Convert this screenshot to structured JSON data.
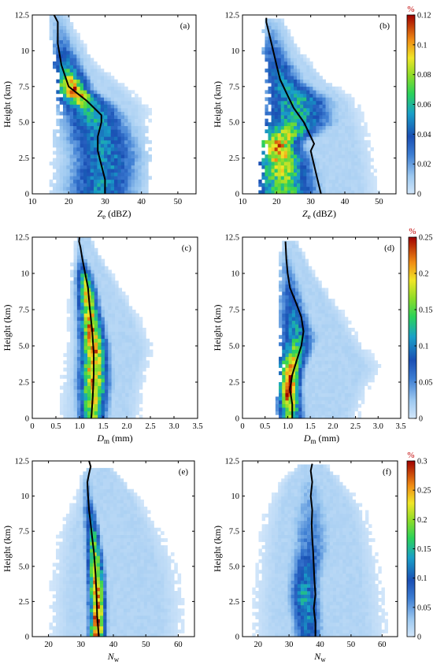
{
  "chart_data": [
    {
      "id": "a",
      "type": "heatmap",
      "panel_label": "(a)",
      "xlabel_main": "Z",
      "xlabel_sub": "e",
      "xlabel_unit": " (dBZ)",
      "ylabel": "Height (km)",
      "xlim": [
        10,
        55
      ],
      "ylim": [
        0,
        12.5
      ],
      "xticks": [
        "10",
        "20",
        "30",
        "40",
        "50"
      ],
      "xtick_values": [
        10,
        20,
        30,
        40,
        50
      ],
      "yticks": [
        "0",
        "2.5",
        "5.0",
        "7.5",
        "10",
        "12.5"
      ],
      "ytick_values": [
        0,
        2.5,
        5,
        7.5,
        10,
        12.5
      ],
      "density_profile": [
        {
          "h": 0.5,
          "left": 15,
          "right": 43,
          "peak": 29,
          "width": 6,
          "max": 0.05
        },
        {
          "h": 2.5,
          "left": 15,
          "right": 43,
          "peak": 30,
          "width": 6,
          "max": 0.05
        },
        {
          "h": 4.5,
          "left": 16,
          "right": 42,
          "peak": 28,
          "width": 6,
          "max": 0.05
        },
        {
          "h": 5.8,
          "left": 17,
          "right": 43,
          "peak": 26,
          "width": 5,
          "max": 0.06
        },
        {
          "h": 7.3,
          "left": 17,
          "right": 37,
          "peak": 21,
          "width": 3,
          "max": 0.11
        },
        {
          "h": 9.0,
          "left": 16,
          "right": 28,
          "peak": 19,
          "width": 3,
          "max": 0.05
        },
        {
          "h": 11.0,
          "left": 15,
          "right": 23,
          "peak": 18,
          "width": 2,
          "max": 0.02
        },
        {
          "h": 12.5,
          "left": 15,
          "right": 20,
          "peak": 17,
          "width": 2,
          "max": 0.01
        }
      ],
      "mean_profile": {
        "x": [
          30,
          30,
          29,
          28,
          28,
          29,
          29,
          25,
          20,
          18,
          17,
          17,
          16
        ],
        "h": [
          0,
          1,
          2,
          3,
          4,
          5,
          5.5,
          6.5,
          7.5,
          9,
          10.5,
          12,
          12.5
        ]
      }
    },
    {
      "id": "b",
      "type": "heatmap",
      "panel_label": "(b)",
      "xlabel_main": "Z",
      "xlabel_sub": "e",
      "xlabel_unit": " (dBZ)",
      "ylabel": "Height (km)",
      "xlim": [
        10,
        55
      ],
      "ylim": [
        0,
        12.5
      ],
      "xticks": [
        "10",
        "20",
        "30",
        "40",
        "50"
      ],
      "xtick_values": [
        10,
        20,
        30,
        40,
        50
      ],
      "yticks": [
        "0",
        "2.5",
        "5.0",
        "7.5",
        "10",
        "12.5"
      ],
      "ytick_values": [
        0,
        2.5,
        5,
        7.5,
        10,
        12.5
      ],
      "colorbar": {
        "unit": "%",
        "ticks": [
          "0",
          "0.02",
          "0.04",
          "0.06",
          "0.08",
          "0.1",
          "0.12"
        ],
        "tick_values": [
          0,
          0.02,
          0.04,
          0.06,
          0.08,
          0.1,
          0.12
        ],
        "max": 0.12
      },
      "density_profile": [
        {
          "h": 0.5,
          "left": 15,
          "right": 50,
          "peak": 22,
          "width": 6,
          "max": 0.07
        },
        {
          "h": 2.5,
          "left": 15,
          "right": 49,
          "peak": 21,
          "width": 5,
          "max": 0.09
        },
        {
          "h": 3.5,
          "left": 16,
          "right": 48,
          "peak": 20,
          "width": 4,
          "max": 0.1
        },
        {
          "h": 5.0,
          "left": 17,
          "right": 46,
          "peak": 25,
          "width": 7,
          "max": 0.06
        },
        {
          "h": 6.5,
          "left": 17,
          "right": 44,
          "peak": 26,
          "width": 6,
          "max": 0.06
        },
        {
          "h": 8.0,
          "left": 17,
          "right": 35,
          "peak": 21,
          "width": 4,
          "max": 0.05
        },
        {
          "h": 10.0,
          "left": 16,
          "right": 27,
          "peak": 19,
          "width": 3,
          "max": 0.03
        },
        {
          "h": 12.2,
          "left": 16,
          "right": 22,
          "peak": 18,
          "width": 2,
          "max": 0.01
        }
      ],
      "mean_profile": {
        "x": [
          33,
          32,
          31,
          30,
          31,
          30,
          28,
          25,
          23,
          21,
          20,
          19,
          18,
          17,
          17
        ],
        "h": [
          0,
          1,
          2,
          3,
          3.5,
          4,
          5,
          6,
          7,
          8,
          9,
          10,
          11,
          12,
          12.3
        ]
      }
    },
    {
      "id": "c",
      "type": "heatmap",
      "panel_label": "(c)",
      "xlabel_main": "D",
      "xlabel_sub": "m",
      "xlabel_unit": " (mm)",
      "ylabel": "Height (km)",
      "xlim": [
        0,
        3.5
      ],
      "ylim": [
        0,
        12.5
      ],
      "xticks": [
        "0",
        "0.5",
        "1.0",
        "1.5",
        "2.0",
        "2.5",
        "3.0",
        "3.5"
      ],
      "xtick_values": [
        0,
        0.5,
        1,
        1.5,
        2,
        2.5,
        3,
        3.5
      ],
      "yticks": [
        "0",
        "2.5",
        "5.0",
        "7.5",
        "10",
        "12.5"
      ],
      "ytick_values": [
        0,
        2.5,
        5,
        7.5,
        10,
        12.5
      ],
      "density_profile": [
        {
          "h": 0.5,
          "left": 0.55,
          "right": 2.3,
          "peak": 1.28,
          "width": 0.18,
          "max": 0.17
        },
        {
          "h": 2.5,
          "left": 0.6,
          "right": 2.4,
          "peak": 1.3,
          "width": 0.2,
          "max": 0.2
        },
        {
          "h": 5.0,
          "left": 0.7,
          "right": 2.6,
          "peak": 1.3,
          "width": 0.18,
          "max": 0.21
        },
        {
          "h": 7.5,
          "left": 0.75,
          "right": 2.2,
          "peak": 1.2,
          "width": 0.14,
          "max": 0.2
        },
        {
          "h": 9.5,
          "left": 0.8,
          "right": 1.8,
          "peak": 1.12,
          "width": 0.12,
          "max": 0.16
        },
        {
          "h": 11.0,
          "left": 0.85,
          "right": 1.5,
          "peak": 1.05,
          "width": 0.08,
          "max": 0.04
        },
        {
          "h": 12.5,
          "left": 0.9,
          "right": 1.25,
          "peak": 1.0,
          "width": 0.06,
          "max": 0.01
        }
      ],
      "mean_profile": {
        "x": [
          1.25,
          1.28,
          1.3,
          1.3,
          1.27,
          1.22,
          1.18,
          1.12,
          1.06,
          1.02,
          0.99,
          1.0
        ],
        "h": [
          0,
          1.5,
          3,
          4.5,
          6,
          7.5,
          9,
          10,
          11,
          11.8,
          12.2,
          12.5
        ]
      }
    },
    {
      "id": "d",
      "type": "heatmap",
      "panel_label": "(d)",
      "xlabel_main": "D",
      "xlabel_sub": "m",
      "xlabel_unit": " (mm)",
      "ylabel": "Height (km)",
      "xlim": [
        0,
        3.5
      ],
      "ylim": [
        0,
        12.5
      ],
      "xticks": [
        "0",
        "0.5",
        "1.0",
        "1.5",
        "2.0",
        "2.5",
        "3.0",
        "3.5"
      ],
      "xtick_values": [
        0,
        0.5,
        1,
        1.5,
        2,
        2.5,
        3,
        3.5
      ],
      "yticks": [
        "0",
        "2.5",
        "5.0",
        "7.5",
        "10",
        "12.5"
      ],
      "ytick_values": [
        0,
        2.5,
        5,
        7.5,
        10,
        12.5
      ],
      "colorbar": {
        "unit": "%",
        "ticks": [
          "0",
          "0.05",
          "0.1",
          "0.15",
          "0.2",
          "0.25"
        ],
        "tick_values": [
          0,
          0.05,
          0.1,
          0.15,
          0.2,
          0.25
        ],
        "max": 0.25
      },
      "density_profile": [
        {
          "h": 0.5,
          "left": 0.7,
          "right": 2.6,
          "peak": 1.05,
          "width": 0.18,
          "max": 0.16
        },
        {
          "h": 2.0,
          "left": 0.75,
          "right": 2.8,
          "peak": 1.02,
          "width": 0.15,
          "max": 0.24
        },
        {
          "h": 3.5,
          "left": 0.8,
          "right": 3.1,
          "peak": 1.05,
          "width": 0.18,
          "max": 0.2
        },
        {
          "h": 5.5,
          "left": 0.8,
          "right": 2.6,
          "peak": 1.2,
          "width": 0.25,
          "max": 0.12
        },
        {
          "h": 7.5,
          "left": 0.8,
          "right": 2.2,
          "peak": 1.1,
          "width": 0.2,
          "max": 0.09
        },
        {
          "h": 10.0,
          "left": 0.8,
          "right": 1.6,
          "peak": 1.0,
          "width": 0.14,
          "max": 0.05
        },
        {
          "h": 12.3,
          "left": 0.85,
          "right": 1.2,
          "peak": 0.95,
          "width": 0.07,
          "max": 0.01
        }
      ],
      "mean_profile": {
        "x": [
          1.1,
          1.1,
          1.05,
          1.1,
          1.2,
          1.3,
          1.35,
          1.3,
          1.18,
          1.05,
          1.0,
          0.97,
          0.95
        ],
        "h": [
          0,
          1,
          2,
          3,
          4,
          5,
          6,
          7,
          8,
          9,
          10,
          11,
          12.2
        ]
      }
    },
    {
      "id": "e",
      "type": "heatmap",
      "panel_label": "(e)",
      "xlabel_main": "N",
      "xlabel_sub": "w",
      "xlabel_unit": "",
      "ylabel": "Height (km)",
      "xlim": [
        15,
        65
      ],
      "ylim": [
        0,
        12.5
      ],
      "xticks": [
        "20",
        "30",
        "40",
        "50",
        "60"
      ],
      "xtick_values": [
        20,
        30,
        40,
        50,
        60
      ],
      "yticks": [
        "0",
        "2.5",
        "5.0",
        "7.5",
        "10",
        "12.5"
      ],
      "ytick_values": [
        0,
        2.5,
        5,
        7.5,
        10,
        12.5
      ],
      "density_profile": [
        {
          "h": 0.5,
          "left": 20,
          "right": 62,
          "peak": 35,
          "width": 1.6,
          "max": 0.27
        },
        {
          "h": 2.5,
          "left": 20,
          "right": 62,
          "peak": 35,
          "width": 1.6,
          "max": 0.27
        },
        {
          "h": 5.0,
          "left": 21,
          "right": 60,
          "peak": 34.5,
          "width": 1.6,
          "max": 0.22
        },
        {
          "h": 7.5,
          "left": 23,
          "right": 55,
          "peak": 33.5,
          "width": 1.4,
          "max": 0.15
        },
        {
          "h": 10.0,
          "left": 28,
          "right": 48,
          "peak": 32,
          "width": 1.2,
          "max": 0.06
        },
        {
          "h": 12.0,
          "left": 31,
          "right": 40,
          "peak": 32,
          "width": 0.8,
          "max": 0.02
        }
      ],
      "mean_profile": {
        "x": [
          35.5,
          35,
          34.8,
          34.5,
          34,
          33.5,
          33,
          32.5,
          32.2,
          32,
          32.5,
          33,
          32.5
        ],
        "h": [
          0,
          1.5,
          3,
          4.5,
          6,
          7,
          8,
          9,
          10,
          11,
          11.6,
          12.1,
          12.5
        ]
      }
    },
    {
      "id": "f",
      "type": "heatmap",
      "panel_label": "(f)",
      "xlabel_main": "N",
      "xlabel_sub": "w",
      "xlabel_unit": "",
      "ylabel": "Height (km)",
      "xlim": [
        15,
        65
      ],
      "ylim": [
        0,
        12.5
      ],
      "xticks": [
        "20",
        "30",
        "40",
        "50",
        "60"
      ],
      "xtick_values": [
        20,
        30,
        40,
        50,
        60
      ],
      "yticks": [
        "0",
        "2.5",
        "5.0",
        "7.5",
        "10",
        "12.5"
      ],
      "ytick_values": [
        0,
        2.5,
        5,
        7.5,
        10,
        12.5
      ],
      "colorbar": {
        "unit": "%",
        "ticks": [
          "0",
          "0.05",
          "0.1",
          "0.15",
          "0.2",
          "0.25",
          "0.3"
        ],
        "tick_values": [
          0,
          0.05,
          0.1,
          0.15,
          0.2,
          0.25,
          0.3
        ],
        "max": 0.3
      },
      "density_profile": [
        {
          "h": 0.5,
          "left": 18,
          "right": 62,
          "peak": 36,
          "width": 3,
          "max": 0.11
        },
        {
          "h": 2.5,
          "left": 18,
          "right": 61,
          "peak": 35,
          "width": 3,
          "max": 0.14
        },
        {
          "h": 4.0,
          "left": 19,
          "right": 60,
          "peak": 35,
          "width": 3,
          "max": 0.12
        },
        {
          "h": 6.5,
          "left": 20,
          "right": 58,
          "peak": 37,
          "width": 4,
          "max": 0.07
        },
        {
          "h": 9.0,
          "left": 22,
          "right": 55,
          "peak": 37,
          "width": 4,
          "max": 0.05
        },
        {
          "h": 11.0,
          "left": 27,
          "right": 48,
          "peak": 37,
          "width": 3,
          "max": 0.03
        },
        {
          "h": 12.3,
          "left": 33,
          "right": 42,
          "peak": 37,
          "width": 2,
          "max": 0.01
        }
      ],
      "mean_profile": {
        "x": [
          38.5,
          38.5,
          38,
          38.5,
          38.2,
          38,
          37.8,
          37.5,
          37.3,
          37.5,
          37,
          37.5,
          37,
          37.5
        ],
        "h": [
          0,
          1,
          2,
          3,
          4,
          5,
          6,
          7,
          8,
          9,
          10,
          11,
          11.8,
          12.3
        ]
      }
    }
  ]
}
